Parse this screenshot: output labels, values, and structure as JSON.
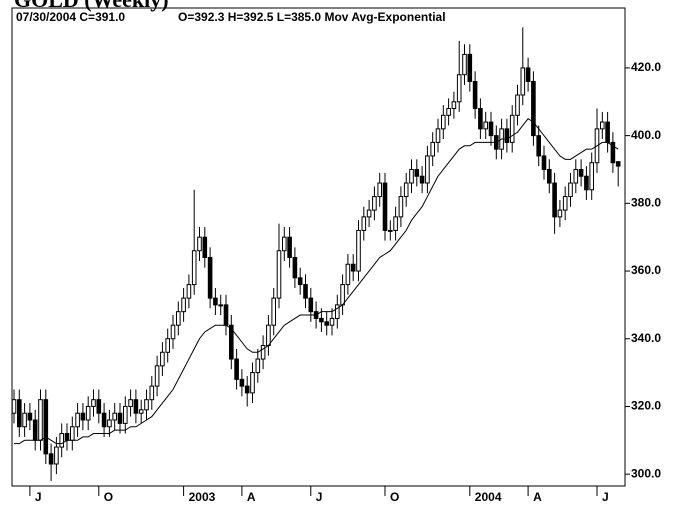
{
  "chart_data": {
    "type": "candlestick",
    "title": "GOLD (Weekly)",
    "header_left": "07/30/2004  C=391.0",
    "header_right": "O=392.3  H=392.5  L=385.0  Mov Avg-Exponential",
    "categories": [
      null,
      null,
      null,
      "J",
      null,
      null,
      null,
      null,
      null,
      null,
      null,
      null,
      null,
      null,
      null,
      null,
      "O",
      null,
      null,
      null,
      null,
      null,
      null,
      null,
      null,
      null,
      null,
      null,
      null,
      null,
      null,
      null,
      "2003",
      null,
      null,
      null,
      null,
      null,
      null,
      null,
      null,
      null,
      null,
      "A",
      null,
      null,
      null,
      null,
      null,
      null,
      null,
      null,
      null,
      null,
      null,
      null,
      "J",
      null,
      null,
      null,
      null,
      null,
      null,
      null,
      null,
      null,
      null,
      null,
      null,
      null,
      "O",
      null,
      null,
      null,
      null,
      null,
      null,
      null,
      null,
      null,
      null,
      null,
      null,
      null,
      null,
      null,
      "2004",
      null,
      null,
      null,
      null,
      null,
      null,
      null,
      null,
      null,
      null,
      "A",
      null,
      null,
      null,
      null,
      null,
      null,
      null,
      null,
      null,
      null,
      null,
      null,
      "J",
      null,
      null,
      null,
      null
    ],
    "open": [
      318,
      322,
      314,
      318,
      316,
      310,
      322,
      306,
      303,
      308,
      312,
      310,
      314,
      318,
      316,
      320,
      322,
      318,
      314,
      316,
      318,
      315,
      320,
      322,
      318,
      319,
      322,
      326,
      332,
      336,
      340,
      344,
      348,
      352,
      356,
      366,
      370,
      364,
      352,
      350,
      350,
      344,
      334,
      328,
      326,
      324,
      330,
      334,
      338,
      344,
      352,
      366,
      370,
      364,
      358,
      356,
      352,
      348,
      346,
      345,
      344,
      346,
      350,
      356,
      362,
      360,
      372,
      376,
      378,
      382,
      386,
      372,
      372,
      376,
      382,
      386,
      390,
      388,
      386,
      394,
      398,
      402,
      406,
      408,
      410,
      418,
      424,
      416,
      408,
      402,
      404,
      400,
      396,
      402,
      398,
      406,
      412,
      420,
      416,
      400,
      394,
      390,
      386,
      376,
      378,
      382,
      386,
      390,
      388,
      384,
      392,
      402,
      404,
      398,
      392.3
    ],
    "high": [
      325,
      325,
      321,
      321,
      319,
      325,
      325,
      309,
      311,
      315,
      315,
      317,
      321,
      321,
      323,
      325,
      325,
      321,
      319,
      321,
      321,
      323,
      325,
      325,
      322,
      325,
      329,
      335,
      339,
      343,
      347,
      351,
      355,
      359,
      384,
      373,
      373,
      367,
      355,
      353,
      353,
      347,
      337,
      331,
      329,
      333,
      337,
      341,
      347,
      355,
      374,
      373,
      373,
      367,
      361,
      359,
      355,
      351,
      349,
      348,
      349,
      353,
      359,
      365,
      365,
      375,
      379,
      381,
      385,
      389,
      389,
      375,
      379,
      385,
      389,
      393,
      393,
      391,
      397,
      401,
      405,
      409,
      411,
      413,
      428,
      427,
      427,
      419,
      411,
      407,
      407,
      403,
      405,
      405,
      409,
      415,
      432,
      423,
      419,
      403,
      397,
      393,
      389,
      381,
      385,
      389,
      393,
      393,
      391,
      395,
      408,
      407,
      407,
      401,
      392.5
    ],
    "low": [
      315,
      311,
      311,
      313,
      307,
      307,
      303,
      298,
      300,
      305,
      307,
      307,
      311,
      313,
      313,
      317,
      315,
      311,
      311,
      313,
      312,
      312,
      317,
      315,
      315,
      316,
      319,
      323,
      329,
      333,
      337,
      341,
      345,
      349,
      353,
      363,
      361,
      349,
      347,
      347,
      341,
      331,
      325,
      323,
      320,
      321,
      327,
      331,
      335,
      341,
      349,
      363,
      361,
      355,
      353,
      349,
      345,
      343,
      342,
      341,
      341,
      343,
      347,
      353,
      357,
      357,
      369,
      373,
      375,
      379,
      369,
      369,
      369,
      373,
      379,
      383,
      385,
      383,
      383,
      391,
      395,
      399,
      403,
      405,
      407,
      415,
      413,
      405,
      399,
      399,
      397,
      393,
      393,
      395,
      395,
      403,
      409,
      413,
      397,
      391,
      387,
      383,
      371,
      373,
      375,
      379,
      383,
      385,
      381,
      381,
      389,
      399,
      395,
      389,
      385
    ],
    "close": [
      322,
      314,
      318,
      316,
      310,
      322,
      306,
      303,
      308,
      312,
      310,
      314,
      318,
      316,
      320,
      322,
      318,
      314,
      316,
      318,
      315,
      320,
      322,
      318,
      319,
      322,
      326,
      332,
      336,
      340,
      344,
      348,
      352,
      356,
      366,
      370,
      364,
      352,
      350,
      350,
      344,
      334,
      328,
      326,
      324,
      330,
      334,
      338,
      344,
      352,
      366,
      370,
      364,
      358,
      356,
      352,
      348,
      346,
      345,
      344,
      346,
      350,
      356,
      362,
      360,
      372,
      376,
      378,
      382,
      386,
      372,
      372,
      376,
      382,
      386,
      390,
      388,
      386,
      394,
      398,
      402,
      406,
      408,
      410,
      418,
      424,
      416,
      408,
      402,
      404,
      400,
      396,
      402,
      398,
      406,
      412,
      420,
      416,
      400,
      394,
      390,
      386,
      376,
      378,
      382,
      386,
      390,
      388,
      384,
      392,
      402,
      404,
      398,
      392,
      391.0
    ],
    "moving_average": [
      309,
      309,
      310,
      310,
      310,
      310,
      311,
      310,
      309,
      309,
      310,
      310,
      310,
      311,
      311,
      312,
      312,
      312,
      312,
      313,
      313,
      313,
      314,
      314,
      315,
      316,
      317,
      319,
      321,
      323,
      325,
      328,
      331,
      334,
      337,
      340,
      342,
      343,
      344,
      344,
      344,
      343,
      341,
      339,
      337,
      336,
      336,
      337,
      338,
      340,
      342,
      344,
      345,
      346,
      347,
      347,
      347,
      347,
      348,
      348,
      348,
      349,
      350,
      352,
      354,
      356,
      358,
      360,
      362,
      364,
      365,
      366,
      368,
      370,
      372,
      375,
      377,
      379,
      382,
      385,
      388,
      390,
      392,
      394,
      396,
      397,
      397,
      398,
      398,
      398,
      398,
      398,
      399,
      399,
      400,
      401,
      403,
      405,
      404,
      402,
      400,
      398,
      396,
      394,
      393,
      393,
      394,
      395,
      396,
      396,
      397,
      398,
      398,
      397,
      396
    ],
    "up_color": "#ffffff",
    "down_color": "#000000",
    "line_color": "#000000",
    "ylim": [
      296.5,
      437.7
    ],
    "yticks": [
      {
        "value": 300,
        "label": "300.0"
      },
      {
        "value": 320,
        "label": "320.0"
      },
      {
        "value": 340,
        "label": "340.0"
      },
      {
        "value": 360,
        "label": "360.0"
      },
      {
        "value": 380,
        "label": "380.0"
      },
      {
        "value": 400,
        "label": "400.0"
      },
      {
        "value": 420,
        "label": "420.0"
      }
    ]
  }
}
